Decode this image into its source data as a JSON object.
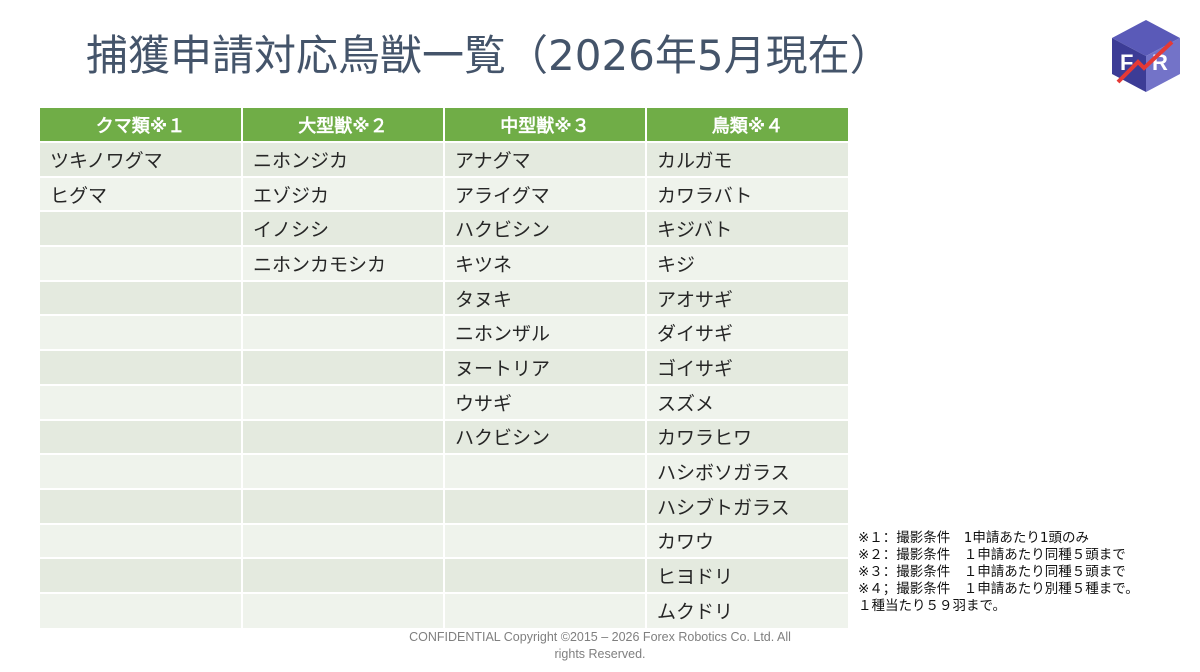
{
  "slide": {
    "title": "捕獲申請対応鳥獣一覧（2026年5月現在）",
    "logo": {
      "icon": "forex-robotics-cube-logo",
      "letters": [
        "F",
        "R"
      ],
      "colors": [
        "#4a4aa8",
        "#e53935"
      ]
    }
  },
  "table": {
    "headers": [
      "クマ類※１",
      "大型獣※２",
      "中型獣※３",
      "鳥類※４"
    ],
    "header_color": "#70ad47",
    "rows": [
      [
        "ツキノワグマ",
        "ニホンジカ",
        "アナグマ",
        "カルガモ"
      ],
      [
        "ヒグマ",
        "エゾジカ",
        "アライグマ",
        "カワラバト"
      ],
      [
        "",
        "イノシシ",
        "ハクビシン",
        "キジバト"
      ],
      [
        "",
        "ニホンカモシカ",
        "キツネ",
        "キジ"
      ],
      [
        "",
        "",
        "タヌキ",
        "アオサギ"
      ],
      [
        "",
        "",
        "ニホンザル",
        "ダイサギ"
      ],
      [
        "",
        "",
        "ヌートリア",
        "ゴイサギ"
      ],
      [
        "",
        "",
        "ウサギ",
        "スズメ"
      ],
      [
        "",
        "",
        "ハクビシン",
        "カワラヒワ"
      ],
      [
        "",
        "",
        "",
        "ハシボソガラス"
      ],
      [
        "",
        "",
        "",
        "ハシブトガラス"
      ],
      [
        "",
        "",
        "",
        "カワウ"
      ],
      [
        "",
        "",
        "",
        "ヒヨドリ"
      ],
      [
        "",
        "",
        "",
        "ムクドリ"
      ]
    ]
  },
  "notes": [
    "※１：撮影条件　1申請あたり1頭のみ",
    "※２：撮影条件　１申請あたり同種５頭まで",
    "※３：撮影条件　１申請あたり同種５頭まで",
    "※４；撮影条件　１申請あたり別種５種まで。",
    "１種当たり５９羽まで。"
  ],
  "footer": {
    "line1": "CONFIDENTIAL Copyright ©2015 – 2026 Forex Robotics Co. Ltd. All",
    "line2": "rights Reserved."
  }
}
